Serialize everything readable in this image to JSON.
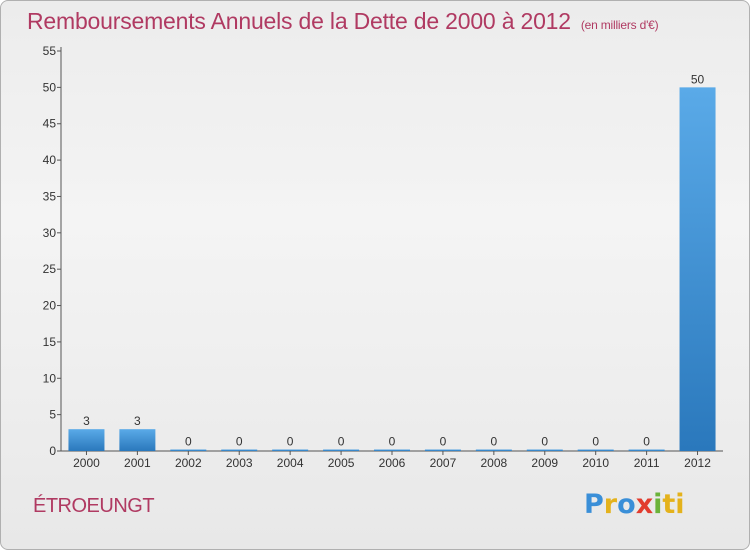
{
  "header": {
    "title": "Remboursements Annuels de la Dette de 2000 à 2012",
    "unit": "(en milliers d'€)"
  },
  "footer": {
    "commune": "ÉTROEUNGT",
    "logo": "Proxiti",
    "logo_letters": [
      "P",
      "r",
      "o",
      "x",
      "i",
      "ti"
    ]
  },
  "colors": {
    "title": "#b03a62",
    "bar_light": "#5aaae8",
    "bar_dark": "#2a78bc",
    "axis": "#555555"
  },
  "chart_data": {
    "type": "bar",
    "title": "Remboursements Annuels de la Dette de 2000 à 2012",
    "xlabel": "",
    "ylabel": "",
    "categories": [
      "2000",
      "2001",
      "2002",
      "2003",
      "2004",
      "2005",
      "2006",
      "2007",
      "2008",
      "2009",
      "2010",
      "2011",
      "2012"
    ],
    "values": [
      3,
      3,
      0,
      0,
      0,
      0,
      0,
      0,
      0,
      0,
      0,
      0,
      50
    ],
    "ylim": [
      0,
      55
    ],
    "yticks": [
      0,
      5,
      10,
      15,
      20,
      25,
      30,
      35,
      40,
      45,
      50,
      55
    ],
    "grid": false,
    "legend": "none"
  }
}
